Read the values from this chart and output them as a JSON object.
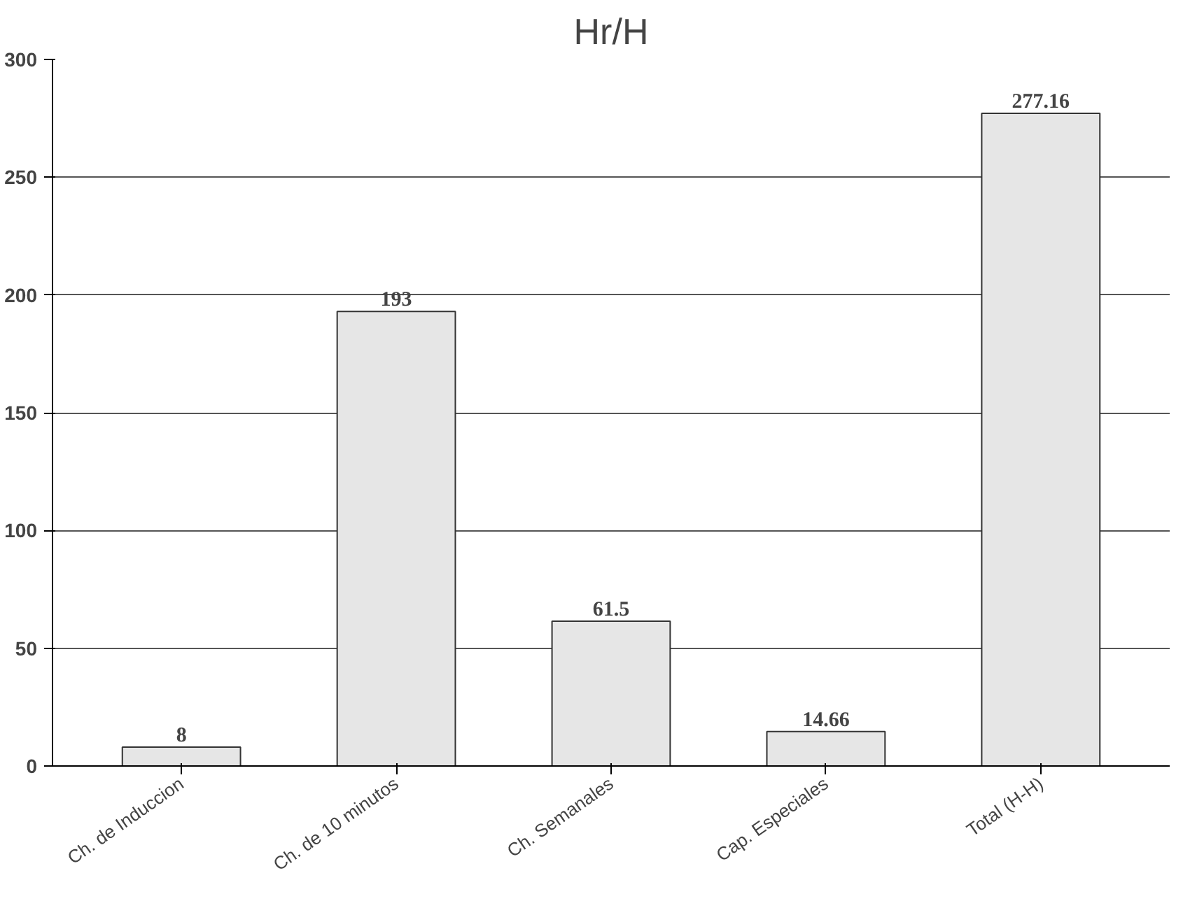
{
  "chart_data": {
    "type": "bar",
    "title": "Hr/H",
    "categories": [
      "Ch. de Induccion",
      "Ch. de 10 minutos",
      "Ch. Semanales",
      "Cap. Especiales",
      "Total (H-H)"
    ],
    "values": [
      8,
      193,
      61.5,
      14.66,
      277.16
    ],
    "color": "#e6e6e6",
    "ylim": [
      0,
      300
    ],
    "yticks": [
      0,
      50,
      100,
      150,
      200,
      250,
      300
    ],
    "grid": "y",
    "data_labels": true
  }
}
